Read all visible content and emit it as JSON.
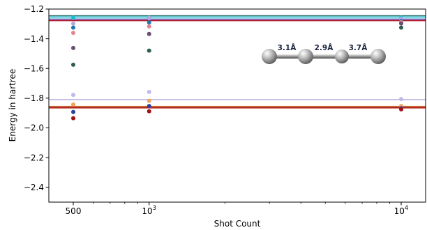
{
  "chart_data": {
    "type": "scatter",
    "title": "",
    "xlabel": "Shot Count",
    "ylabel": "Energy in hartree",
    "x_scale": "log",
    "xlim": [
      400,
      12500
    ],
    "ylim": [
      -2.5,
      -1.2
    ],
    "grid": false,
    "x_ticks": [
      {
        "value": 500,
        "base": "500",
        "exp": ""
      },
      {
        "value": 1000,
        "base": "10",
        "exp": "3"
      },
      {
        "value": 10000,
        "base": "10",
        "exp": "4"
      }
    ],
    "x_minor_ticks": [
      600,
      700,
      800,
      900,
      2000,
      3000,
      4000,
      5000,
      6000,
      7000,
      8000,
      9000
    ],
    "y_ticks": [
      {
        "value": -1.2,
        "label": "−1.2"
      },
      {
        "value": -1.4,
        "label": "−1.4"
      },
      {
        "value": -1.6,
        "label": "−1.6"
      },
      {
        "value": -1.8,
        "label": "−1.8"
      },
      {
        "value": -2.0,
        "label": "−2.0"
      },
      {
        "value": -2.2,
        "label": "−2.2"
      },
      {
        "value": -2.4,
        "label": "−2.4"
      }
    ],
    "reference_lines": [
      {
        "y": -1.245,
        "color": "#2f6e6e"
      },
      {
        "y": -1.253,
        "color": "#17becf"
      },
      {
        "y": -1.262,
        "color": "#8ecae6"
      },
      {
        "y": -1.27,
        "color": "#6a2c91"
      },
      {
        "y": -1.278,
        "color": "#b2182b"
      },
      {
        "y": -1.81,
        "color": "#b3a7e0"
      },
      {
        "y": -1.855,
        "color": "#f4a259"
      },
      {
        "y": -1.86,
        "color": "#8b0000"
      },
      {
        "y": -1.866,
        "color": "#c0392b"
      }
    ],
    "series": [
      {
        "color": "#17becf",
        "x": [
          500,
          1000,
          10000
        ],
        "y": [
          -1.258,
          -1.257,
          -1.258
        ],
        "err": [
          0.005,
          0.005,
          0.005
        ]
      },
      {
        "color": "#b3a7e0",
        "x": [
          500,
          1000,
          10000
        ],
        "y": [
          -1.298,
          -1.26,
          -1.265
        ],
        "err": [
          0.006,
          0.006,
          0.006
        ]
      },
      {
        "color": "#1f77b4",
        "x": [
          500,
          1000,
          10000
        ],
        "y": [
          -1.325,
          -1.29,
          -1.28
        ],
        "err": [
          0.006,
          0.006,
          0.006
        ]
      },
      {
        "color": "#e6858f",
        "x": [
          500,
          1000,
          10000
        ],
        "y": [
          -1.36,
          -1.317,
          -1.288
        ],
        "err": [
          0.006,
          0.006,
          0.006
        ]
      },
      {
        "color": "#6b4e71",
        "x": [
          500,
          1000,
          10000
        ],
        "y": [
          -1.462,
          -1.368,
          -1.297
        ],
        "err": [
          0.007,
          0.007,
          0.007
        ]
      },
      {
        "color": "#2f5d50",
        "x": [
          500,
          1000,
          10000
        ],
        "y": [
          -1.575,
          -1.48,
          -1.325
        ],
        "err": [
          0.007,
          0.007,
          0.007
        ]
      },
      {
        "color": "#c3b8ea",
        "x": [
          500,
          1000,
          10000
        ],
        "y": [
          -1.778,
          -1.758,
          -1.806
        ],
        "err": [
          0.006,
          0.006,
          0.006
        ]
      },
      {
        "color": "#f4a259",
        "x": [
          500,
          1000,
          10000
        ],
        "y": [
          -1.843,
          -1.818,
          -1.853
        ],
        "err": [
          0.006,
          0.006,
          0.006
        ]
      },
      {
        "color": "#2c3e9e",
        "x": [
          500,
          1000,
          10000
        ],
        "y": [
          -1.893,
          -1.853,
          -1.868
        ],
        "err": [
          0.006,
          0.006,
          0.006
        ]
      },
      {
        "color": "#a50f15",
        "x": [
          500,
          1000,
          10000
        ],
        "y": [
          -1.935,
          -1.888,
          -1.875
        ],
        "err": [
          0.006,
          0.006,
          0.006
        ]
      }
    ],
    "annotations": [
      {
        "text": "3.1Å"
      },
      {
        "text": "2.9Å"
      },
      {
        "text": "3.7Å"
      }
    ]
  }
}
